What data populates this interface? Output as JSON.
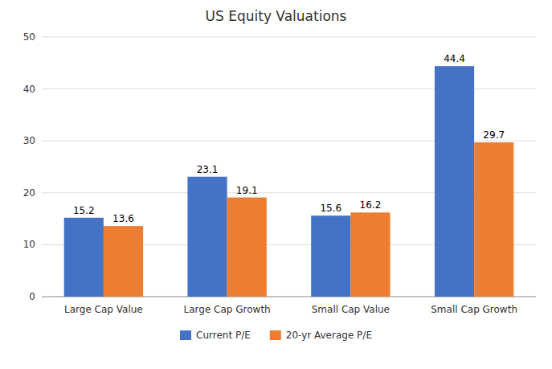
{
  "chart_data": {
    "type": "bar",
    "title": "US Equity Valuations",
    "categories": [
      "Large Cap Value",
      "Large Cap Growth",
      "Small Cap Value",
      "Small Cap Growth"
    ],
    "series": [
      {
        "name": "Current P/E",
        "color": "#4472C4",
        "values": [
          15.2,
          23.1,
          15.6,
          44.4
        ]
      },
      {
        "name": "20-yr Average P/E",
        "color": "#ED7D31",
        "values": [
          13.6,
          19.1,
          16.2,
          29.7
        ]
      }
    ],
    "ylim": [
      0,
      50
    ],
    "yticks": [
      0,
      10,
      20,
      30,
      40,
      50
    ],
    "grid": true,
    "data_labels": true,
    "legend": "bottom"
  }
}
